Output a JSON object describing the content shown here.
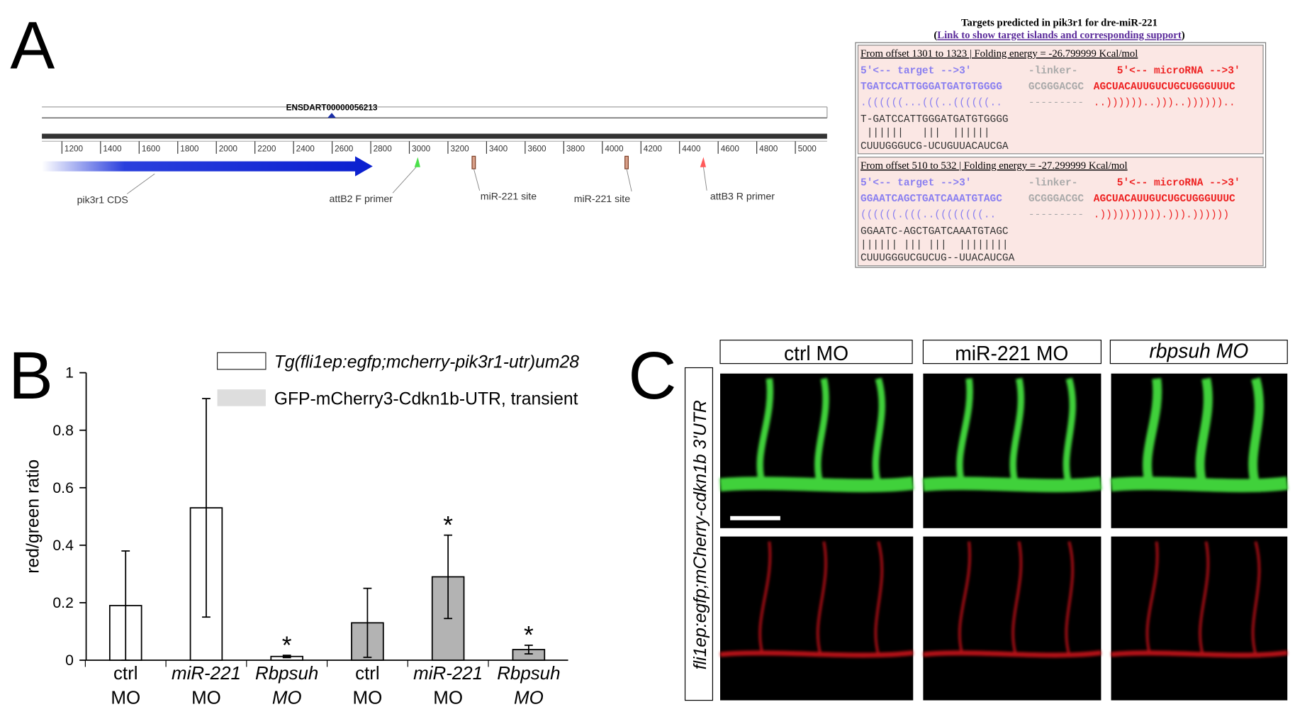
{
  "panel_labels": [
    "A",
    "B",
    "C"
  ],
  "panel_a": {
    "transcript": "ENSDART00000056213",
    "ruler_ticks": [
      1200,
      1400,
      1600,
      1800,
      2000,
      2200,
      2400,
      2600,
      2800,
      3000,
      3200,
      3400,
      3600,
      3800,
      4000,
      4200,
      4400,
      4600,
      4800,
      5000
    ],
    "features": [
      "pik3r1 CDS",
      "attB2 F primer",
      "miR-221 site",
      "miR-221 site",
      "attB3 R primer"
    ],
    "targets": {
      "title": "Targets predicted in pik3r1 for dre-miR-221",
      "link_open": "(",
      "link": "Link to show target islands and corresponding support",
      "link_close": ")",
      "entries": [
        {
          "header": "From offset 1301 to 1323 | Folding energy = -26.799999 Kcal/mol",
          "labels": [
            "5'<-- target -->3'",
            "-linker-",
            "5'<-- microRNA -->3'"
          ],
          "sequence": [
            "TGATCCATTGGGATGATGTGGGG",
            "GCGGGACGC",
            "AGCUACAUUGUCUGCUGGGUUUC"
          ],
          "structure": [
            ".((((((...(((..((((((..",
            "---------",
            "..))))))..)))..)))))).."
          ],
          "alignment": [
            "T-GATCCATTGGGATGATGTGGGG",
            " ||||||   |||  ||||||",
            "CUUUGGGUCG-UCUGUUACAUCGA"
          ]
        },
        {
          "header": "From offset 510 to 532 | Folding energy = -27.299999 Kcal/mol",
          "labels": [
            "5'<-- target -->3'",
            "-linker-",
            "5'<-- microRNA -->3'"
          ],
          "sequence": [
            "GGAATCAGCTGATCAAATGTAGC",
            "GCGGGACGC",
            "AGCUACAUUGUCUGCUGGGUUUC"
          ],
          "structure": [
            "((((((.(((..((((((((..",
            "---------",
            ".)))))))))).))).))))))"
          ],
          "alignment": [
            "GGAATC-AGCTGATCAAATGTAGC",
            "|||||| ||| |||  ||||||||",
            "CUUUGGGUCGUCUG--UUACAUCGA"
          ]
        }
      ]
    }
  },
  "chart_data": {
    "type": "bar",
    "y_label": "red/green ratio",
    "categories": [
      [
        "ctrl",
        "MO"
      ],
      [
        "miR-221",
        "MO"
      ],
      [
        "Rbpsuh",
        "MO"
      ],
      [
        "ctrl",
        "MO"
      ],
      [
        "miR-221",
        "MO"
      ],
      [
        "Rbpsuh",
        "MO"
      ]
    ],
    "series": [
      {
        "name": "Tg(fli1ep:egfp;mcherry-pik3r1-utr)um28",
        "color": "#ffffff",
        "values": [
          0.19,
          0.53,
          0.013,
          null,
          null,
          null
        ],
        "errors": [
          0.19,
          0.38,
          0.004,
          null,
          null,
          null
        ]
      },
      {
        "name": "GFP-mCherry3-Cdkn1b-UTR, transient",
        "color": "#b3b3b3",
        "values": [
          null,
          null,
          null,
          0.13,
          0.29,
          0.037
        ],
        "errors": [
          null,
          null,
          null,
          0.12,
          0.145,
          0.015
        ]
      }
    ],
    "annotations": [
      {
        "text": "*",
        "category": 2
      },
      {
        "text": "*",
        "category": 4
      },
      {
        "text": "*",
        "category": 5
      }
    ],
    "ylim": [
      0,
      1
    ],
    "yticks": [
      0,
      0.2,
      0.4,
      0.6,
      0.8,
      1
    ]
  },
  "panel_c": {
    "columns": [
      "ctrl MO",
      "miR-221 MO",
      "rbpsuh MO"
    ],
    "row_label": "fli1ep:egfp;mCherry-cdkn1b 3'UTR"
  }
}
